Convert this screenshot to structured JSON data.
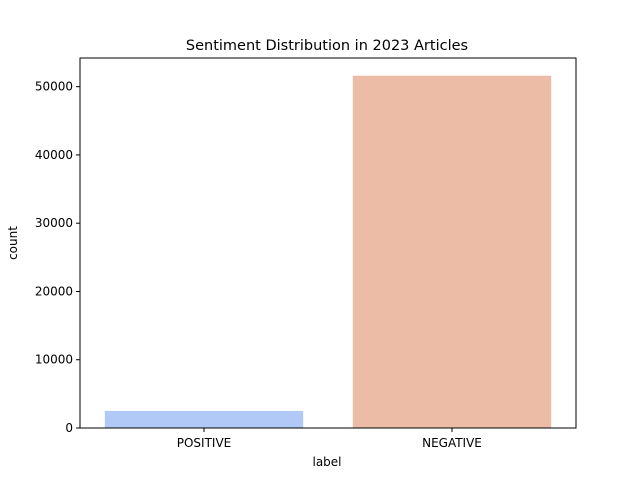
{
  "chart_data": {
    "type": "bar",
    "title": "Sentiment Distribution in 2023 Articles",
    "xlabel": "label",
    "ylabel": "count",
    "categories": [
      "POSITIVE",
      "NEGATIVE"
    ],
    "values": [
      2500,
      51600
    ],
    "ylim": [
      0,
      54200
    ],
    "yticks": [
      0,
      10000,
      20000,
      30000,
      40000,
      50000
    ],
    "ytick_labels": [
      "0",
      "10000",
      "20000",
      "30000",
      "40000",
      "50000"
    ],
    "colors": [
      "#b1c9f6",
      "#ecbca6"
    ],
    "grid": false,
    "legend": "none"
  }
}
